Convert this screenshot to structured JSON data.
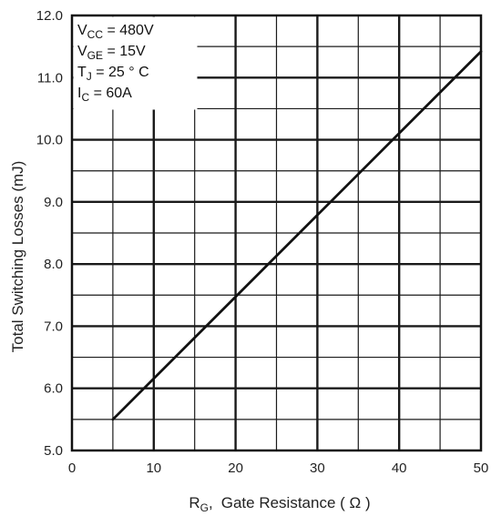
{
  "chart_data": {
    "type": "line",
    "title": "",
    "xlabel": "Gate Resistance ( Ω )",
    "xlabel_symbol": "R",
    "xlabel_symbol_sub": "G",
    "xlabel_separator": ",",
    "ylabel": "Total Switching Losses (mJ)",
    "xlim": [
      0,
      50
    ],
    "ylim": [
      5.0,
      12.0
    ],
    "x_ticks": [
      0,
      10,
      20,
      30,
      40,
      50
    ],
    "x_tick_labels": [
      "0",
      "10",
      "20",
      "30",
      "40",
      "50"
    ],
    "y_ticks": [
      5.0,
      6.0,
      7.0,
      8.0,
      9.0,
      10.0,
      11.0,
      12.0
    ],
    "y_tick_labels": [
      "5.0",
      "6.0",
      "7.0",
      "8.0",
      "9.0",
      "10.0",
      "11.0",
      "12.0"
    ],
    "grid": true,
    "series": [
      {
        "x": [
          5,
          50
        ],
        "y": [
          5.5,
          11.42
        ]
      }
    ],
    "annotations": [
      {
        "main": "V",
        "sub": "CC",
        "rest": " = 480V"
      },
      {
        "main": "V",
        "sub": "GE",
        "rest": " = 15V"
      },
      {
        "main": "T",
        "sub": "J",
        "rest": "    = 25  ° C"
      },
      {
        "main": "I",
        "sub": "C",
        "rest": "    = 60A"
      }
    ]
  },
  "colors": {
    "line": "#111111",
    "grid": "#1a1a1a",
    "text": "#222222",
    "background": "#ffffff"
  }
}
